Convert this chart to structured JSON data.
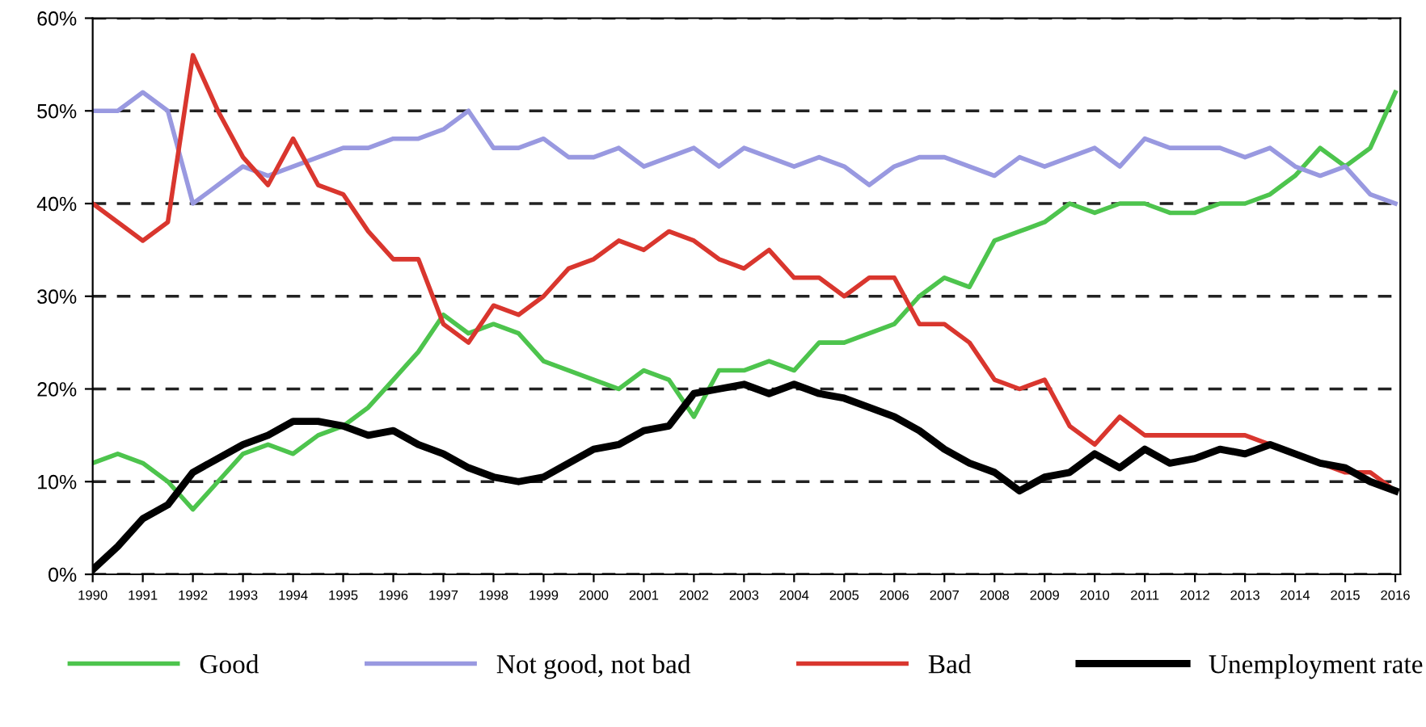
{
  "chart_data": {
    "type": "line",
    "x": [
      1990,
      1990.5,
      1991,
      1991.5,
      1992,
      1992.5,
      1993,
      1993.5,
      1994,
      1994.5,
      1995,
      1995.5,
      1996,
      1996.5,
      1997,
      1997.5,
      1998,
      1998.5,
      1999,
      1999.5,
      2000,
      2000.5,
      2001,
      2001.5,
      2002,
      2002.5,
      2003,
      2003.5,
      2004,
      2004.5,
      2005,
      2005.5,
      2006,
      2006.5,
      2007,
      2007.5,
      2008,
      2008.5,
      2009,
      2009.5,
      2010,
      2010.5,
      2011,
      2011.5,
      2012,
      2012.5,
      2013,
      2013.5,
      2014,
      2014.5,
      2015,
      2015.5,
      2016
    ],
    "series": [
      {
        "name": "Good",
        "color": "#4dc44d",
        "values": [
          12,
          13,
          12,
          10,
          7,
          10,
          13,
          14,
          13,
          15,
          16,
          18,
          21,
          24,
          28,
          26,
          27,
          26,
          23,
          22,
          21,
          20,
          22,
          21,
          17,
          22,
          22,
          23,
          22,
          25,
          25,
          26,
          27,
          30,
          32,
          31,
          36,
          37,
          38,
          40,
          39,
          40,
          40,
          39,
          39,
          40,
          40,
          41,
          43,
          46,
          44,
          46,
          52
        ]
      },
      {
        "name": "Not good, not bad",
        "color": "#9999e0",
        "values": [
          50,
          50,
          52,
          50,
          40,
          42,
          44,
          43,
          44,
          45,
          46,
          46,
          47,
          47,
          48,
          50,
          46,
          46,
          47,
          45,
          45,
          46,
          44,
          45,
          46,
          44,
          46,
          45,
          44,
          45,
          44,
          42,
          44,
          45,
          45,
          44,
          43,
          45,
          44,
          45,
          46,
          44,
          47,
          46,
          46,
          46,
          45,
          46,
          44,
          43,
          44,
          41,
          40
        ]
      },
      {
        "name": "Bad",
        "color": "#d9362e",
        "values": [
          40,
          38,
          36,
          38,
          56,
          50,
          45,
          42,
          47,
          42,
          41,
          37,
          34,
          34,
          27,
          25,
          29,
          28,
          30,
          33,
          34,
          36,
          35,
          37,
          36,
          34,
          33,
          35,
          32,
          32,
          30,
          32,
          32,
          27,
          27,
          25,
          21,
          20,
          21,
          16,
          14,
          17,
          15,
          15,
          15,
          15,
          15,
          14,
          13,
          12,
          11,
          11,
          9
        ]
      },
      {
        "name": "Unemployment rate",
        "color": "#000000",
        "values": [
          0.5,
          3,
          6,
          7.5,
          11,
          12.5,
          14,
          15,
          16.5,
          16.5,
          16,
          15,
          15.5,
          14,
          13,
          11.5,
          10.5,
          10,
          10.5,
          12,
          13.5,
          14,
          15.5,
          16,
          19.5,
          20,
          20.5,
          19.5,
          20.5,
          19.5,
          19,
          18,
          17,
          15.5,
          13.5,
          12,
          11,
          9,
          10.5,
          11,
          13,
          11.5,
          13.5,
          12,
          12.5,
          13.5,
          13,
          14,
          13,
          12,
          11.5,
          10,
          9
        ]
      }
    ],
    "xlim": [
      1990,
      2016.1
    ],
    "xticks": [
      1990,
      1991,
      1992,
      1993,
      1994,
      1995,
      1996,
      1997,
      1998,
      1999,
      2000,
      2001,
      2002,
      2003,
      2004,
      2005,
      2006,
      2007,
      2008,
      2009,
      2010,
      2011,
      2012,
      2013,
      2014,
      2015,
      2016
    ],
    "ylim": [
      0,
      60
    ],
    "yticks": [
      {
        "value": 0,
        "label": "0%"
      },
      {
        "value": 10,
        "label": "10%"
      },
      {
        "value": 20,
        "label": "20%"
      },
      {
        "value": 30,
        "label": "30%"
      },
      {
        "value": 40,
        "label": "40%"
      },
      {
        "value": 50,
        "label": "50%"
      },
      {
        "value": 60,
        "label": "60%"
      }
    ],
    "grid": "y",
    "legend": "bottom",
    "marker": "none",
    "line_style": "solid"
  }
}
